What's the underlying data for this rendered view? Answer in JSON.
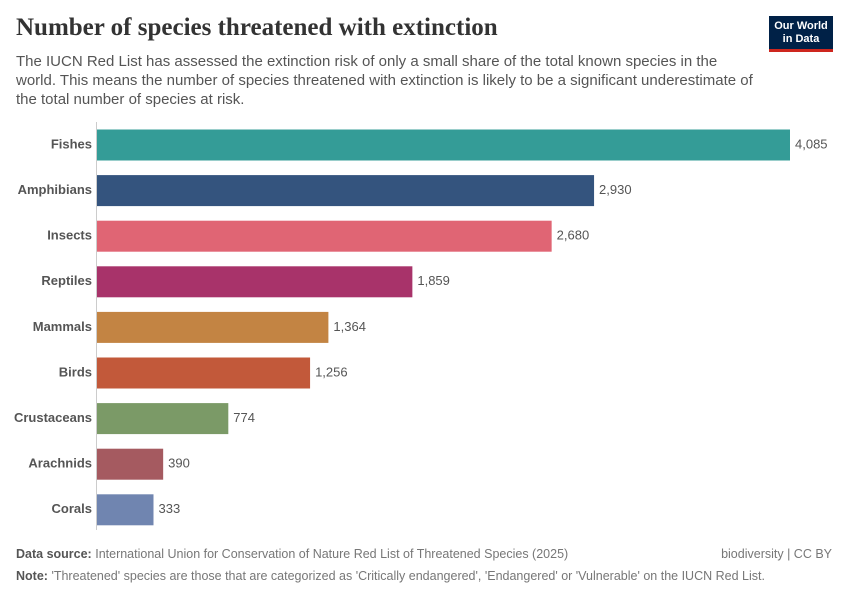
{
  "chart_data": {
    "type": "bar",
    "orientation": "horizontal",
    "title": "Number of species threatened with extinction",
    "subtitle": "The IUCN Red List has assessed the extinction risk of only a small share of the total known species in the world. This means the number of species threatened with extinction is likely to be a significant underestimate of the total number of species at risk.",
    "categories": [
      "Fishes",
      "Amphibians",
      "Insects",
      "Reptiles",
      "Mammals",
      "Birds",
      "Crustaceans",
      "Arachnids",
      "Corals"
    ],
    "values": [
      4085,
      2930,
      2680,
      1859,
      1364,
      1256,
      774,
      390,
      333
    ],
    "value_labels": [
      "4,085",
      "2,930",
      "2,680",
      "1,859",
      "1,364",
      "1,256",
      "774",
      "390",
      "333"
    ],
    "colors": [
      "#349c97",
      "#34547e",
      "#e06574",
      "#a8336a",
      "#c38443",
      "#c2593a",
      "#7b9a67",
      "#a55a60",
      "#7085b0"
    ]
  },
  "logo": [
    "Our World",
    "in Data"
  ],
  "source": {
    "label": "Data source:",
    "text": "International Union for Conservation of Nature Red List of Threatened Species (2025)"
  },
  "license": "biodiversity | CC BY",
  "note": {
    "label": "Note:",
    "text": "'Threatened' species are those that are categorized as 'Critically endangered', 'Endangered' or 'Vulnerable' on the IUCN Red List."
  }
}
